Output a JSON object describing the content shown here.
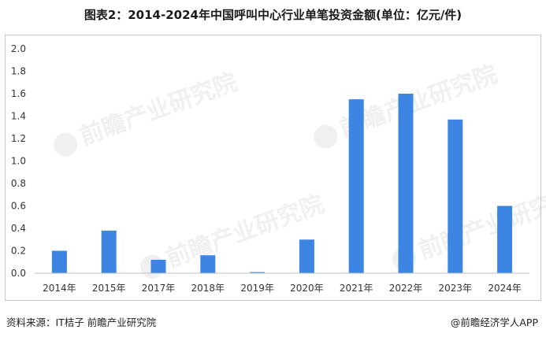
{
  "title": "图表2：2014-2024年中国呼叫中心行业单笔投资金额(单位：亿元/件)",
  "source": "资料来源：IT桔子 前瞻产业研究院",
  "credit": "@前瞻经济学人APP",
  "watermark": "前瞻产业研究院",
  "colors": {
    "bar": "#3d85e3",
    "axis": "#bfbfbf",
    "text": "#333333"
  },
  "chart_data": {
    "type": "bar",
    "categories": [
      "2014年",
      "2015年",
      "2017年",
      "2018年",
      "2019年",
      "2020年",
      "2021年",
      "2022年",
      "2023年",
      "2024年"
    ],
    "values": [
      0.2,
      0.38,
      0.12,
      0.16,
      0.01,
      0.3,
      1.55,
      1.6,
      1.37,
      0.6
    ],
    "ylim": [
      0,
      2.0
    ],
    "yticks": [
      "0.0",
      "0.2",
      "0.4",
      "0.6",
      "0.8",
      "1.0",
      "1.2",
      "1.4",
      "1.6",
      "1.8",
      "2.0"
    ],
    "xlabel": "",
    "ylabel": "",
    "grid": false,
    "legend": "none"
  }
}
